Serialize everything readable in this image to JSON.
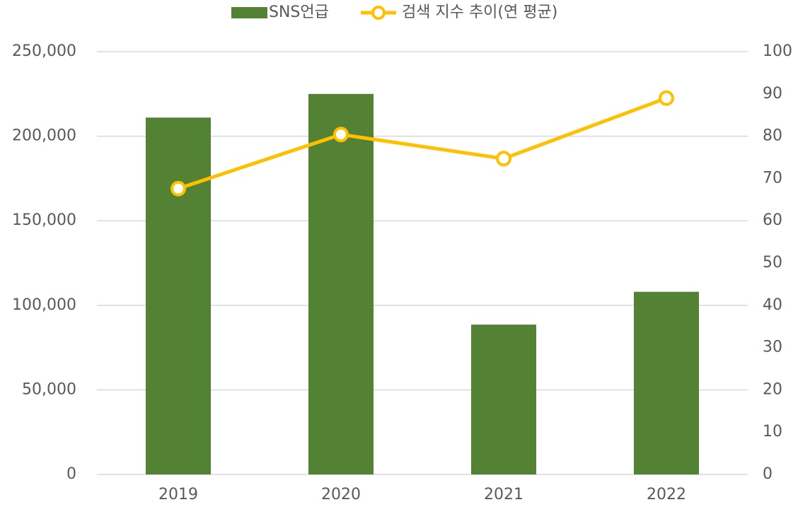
{
  "chart_data": {
    "type": "combo",
    "categories": [
      "2019",
      "2020",
      "2021",
      "2022"
    ],
    "series": [
      {
        "name": "SNS언급",
        "type": "bar",
        "color": "#548235",
        "values": [
          211000,
          225000,
          88600,
          108000
        ]
      },
      {
        "name": "검색 지수 추이(연 평균)",
        "type": "line",
        "axis": "y2",
        "color": "#ffc000",
        "values": [
          67.6,
          80.4,
          74.7,
          89.0
        ]
      }
    ],
    "ylim": [
      0,
      250000
    ],
    "yticks": [
      0,
      {
        "value": 50000,
        "label": "50,000"
      },
      {
        "value": 100000,
        "label": "100,000"
      },
      {
        "value": 150000,
        "label": "150,000"
      },
      {
        "value": 200000,
        "label": "200,000"
      },
      {
        "value": 250000,
        "label": "250,000"
      }
    ],
    "y2lim": [
      0,
      100
    ],
    "y2ticks": [
      0,
      10,
      20,
      30,
      40,
      50,
      60,
      70,
      80,
      90,
      100
    ],
    "grid": true,
    "legend": "top"
  }
}
